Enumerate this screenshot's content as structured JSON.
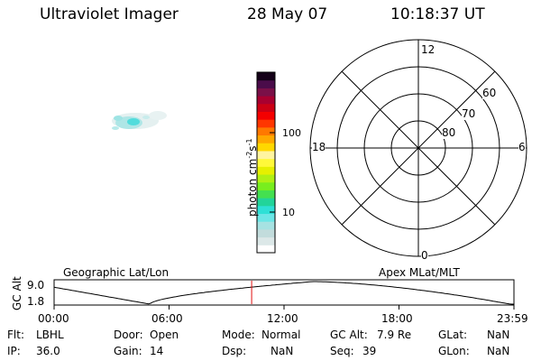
{
  "header": {
    "title": "Ultraviolet Imager",
    "date": "28 May 07",
    "time": "10:18:37 UT"
  },
  "colorbar": {
    "label_text": "photon cm",
    "label_sup1": "-2",
    "label_mid": "s",
    "label_sup2": "-1",
    "tick_100": "100",
    "tick_10": "10",
    "colors": [
      "#ffffff",
      "#dce8e8",
      "#c2dcdc",
      "#a6e2e2",
      "#6ce6e6",
      "#2ee0d6",
      "#22d49a",
      "#44e050",
      "#78ee1e",
      "#b0f014",
      "#e6f000",
      "#fff83a",
      "#fff4a0",
      "#ffd800",
      "#ffa800",
      "#ff7800",
      "#ff3600",
      "#f40000",
      "#cc0014",
      "#a80030",
      "#7a1048",
      "#4a0c4a",
      "#140018"
    ]
  },
  "polar": {
    "label_top": "12",
    "label_bottom": "0",
    "label_left": "18",
    "label_right": "6",
    "ring_60": "60",
    "ring_70": "70",
    "ring_80": "80"
  },
  "timeline": {
    "left_title": "Geographic Lat/Lon",
    "right_title": "Apex MLat/MLT",
    "ylabel": "GC Alt",
    "y_top": "9.0",
    "y_bottom": "1.8",
    "x_ticks": [
      "00:00",
      "06:00",
      "12:00",
      "18:00",
      "23:59"
    ],
    "marker_time_hours": 10.31
  },
  "info": {
    "flt_label": "Flt:",
    "flt_value": "LBHL",
    "ip_label": "IP:",
    "ip_value": "36.0",
    "door_label": "Door:",
    "door_value": "Open",
    "gain_label": "Gain:",
    "gain_value": "14",
    "mode_label": "Mode:",
    "mode_value": "Normal",
    "dsp_label": "Dsp:",
    "dsp_value": "NaN",
    "gcalt_label": "GC Alt:",
    "gcalt_value": "7.9 Re",
    "seq_label": "Seq:",
    "seq_value": "39",
    "glat_label": "GLat:",
    "glat_value": "NaN",
    "glon_label": "GLon:",
    "glon_value": "NaN"
  }
}
